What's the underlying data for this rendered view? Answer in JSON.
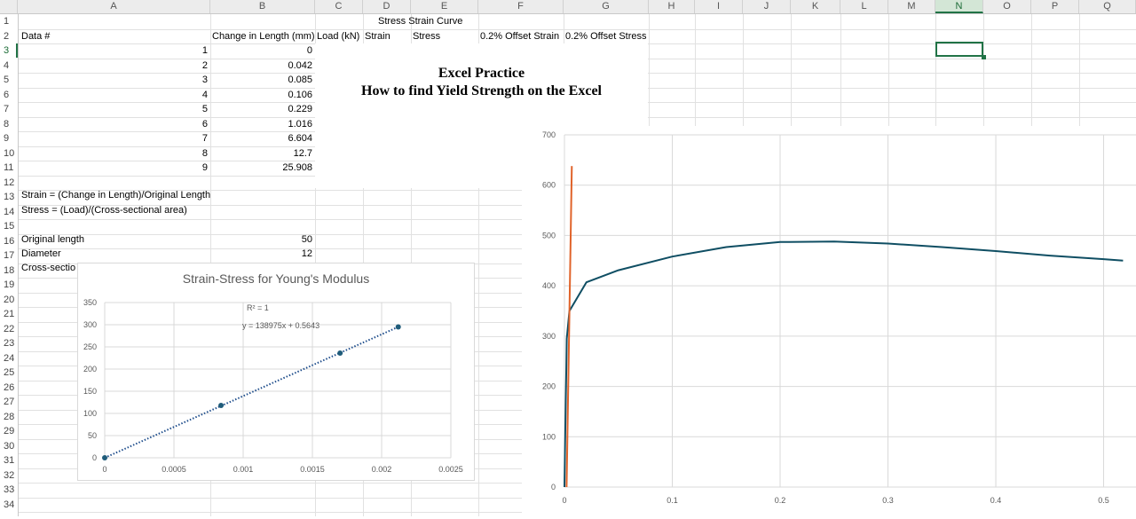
{
  "columns": [
    "A",
    "B",
    "C",
    "D",
    "E",
    "F",
    "G",
    "H",
    "I",
    "J",
    "K",
    "L",
    "M",
    "N",
    "O",
    "P",
    "Q"
  ],
  "rows": [
    "1",
    "2",
    "3",
    "4",
    "5",
    "6",
    "7",
    "8",
    "9",
    "10",
    "11",
    "12",
    "13",
    "14",
    "15",
    "16",
    "17",
    "18",
    "19",
    "20",
    "21",
    "22",
    "23",
    "24",
    "25",
    "26",
    "27",
    "28",
    "29",
    "30",
    "31",
    "32",
    "33",
    "34"
  ],
  "selected_cell": "N3",
  "sheet": {
    "title_d1": "Stress Strain Curve",
    "headers": {
      "a2": "Data #",
      "b2": "Change in Length (mm)",
      "c2": "Load (kN)",
      "d2": "Strain",
      "e2": "Stress",
      "f2": "0.2% Offset Strain",
      "g2": "0.2% Offset Stress"
    },
    "data_rows": [
      {
        "n": "1",
        "dl": "0"
      },
      {
        "n": "2",
        "dl": "0.042"
      },
      {
        "n": "3",
        "dl": "0.085"
      },
      {
        "n": "4",
        "dl": "0.106"
      },
      {
        "n": "5",
        "dl": "0.229"
      },
      {
        "n": "6",
        "dl": "1.016"
      },
      {
        "n": "7",
        "dl": "6.604"
      },
      {
        "n": "8",
        "dl": "12.7"
      },
      {
        "n": "9",
        "dl": "25.908"
      }
    ],
    "a13": "Strain = (Change in Length)/Original Length",
    "a14": "Stress = (Load)/(Cross-sectional area)",
    "a16": "Original length",
    "b16": "50",
    "a17": "Diameter",
    "b17": "12",
    "a18": "Cross-sectio"
  },
  "title_box": {
    "line1": "Excel Practice",
    "line2": "How to find Yield Strength on the Excel"
  },
  "chart_data": [
    {
      "type": "scatter",
      "title": "Strain-Stress for Young's Modulus",
      "xlabel": "",
      "ylabel": "",
      "xlim": [
        0,
        0.0025
      ],
      "ylim": [
        0,
        350
      ],
      "x_ticks": [
        "0",
        "0.0005",
        "0.001",
        "0.0015",
        "0.002",
        "0.0025"
      ],
      "y_ticks": [
        "0",
        "50",
        "100",
        "150",
        "200",
        "250",
        "300",
        "350"
      ],
      "points": [
        [
          0,
          0
        ],
        [
          0.00084,
          118
        ],
        [
          0.0017,
          236
        ],
        [
          0.00212,
          295
        ]
      ],
      "trendline": {
        "style": "dotted",
        "equation": "y = 138975x + 0.5643",
        "r2": "R² = 1"
      },
      "colors": {
        "marker": "#1f5c7a",
        "trendline": "#1f4e8c"
      },
      "grid": true
    },
    {
      "type": "line",
      "title": "",
      "xlabel": "",
      "ylabel": "",
      "xlim": [
        0,
        0.53
      ],
      "ylim": [
        0,
        700
      ],
      "x_ticks": [
        "0",
        "0.1",
        "0.2",
        "0.3",
        "0.4",
        "0.5"
      ],
      "y_ticks": [
        "0",
        "100",
        "200",
        "300",
        "400",
        "500",
        "600",
        "700"
      ],
      "series": [
        {
          "color": "#0f4e63",
          "points": [
            [
              0,
              0
            ],
            [
              0.00084,
              118
            ],
            [
              0.0017,
              236
            ],
            [
              0.00212,
              295
            ],
            [
              0.00458,
              350
            ],
            [
              0.0203,
              407
            ],
            [
              0.05,
              431
            ],
            [
              0.1,
              458
            ],
            [
              0.15,
              477
            ],
            [
              0.2,
              487
            ],
            [
              0.25,
              488
            ],
            [
              0.3,
              484
            ],
            [
              0.35,
              477
            ],
            [
              0.4,
              469
            ],
            [
              0.45,
              460
            ],
            [
              0.5,
              453
            ],
            [
              0.518,
              450
            ]
          ]
        },
        {
          "color": "#e0632a",
          "points": [
            [
              0.002,
              0
            ],
            [
              0.0068,
              638
            ]
          ]
        }
      ],
      "grid": true
    }
  ]
}
